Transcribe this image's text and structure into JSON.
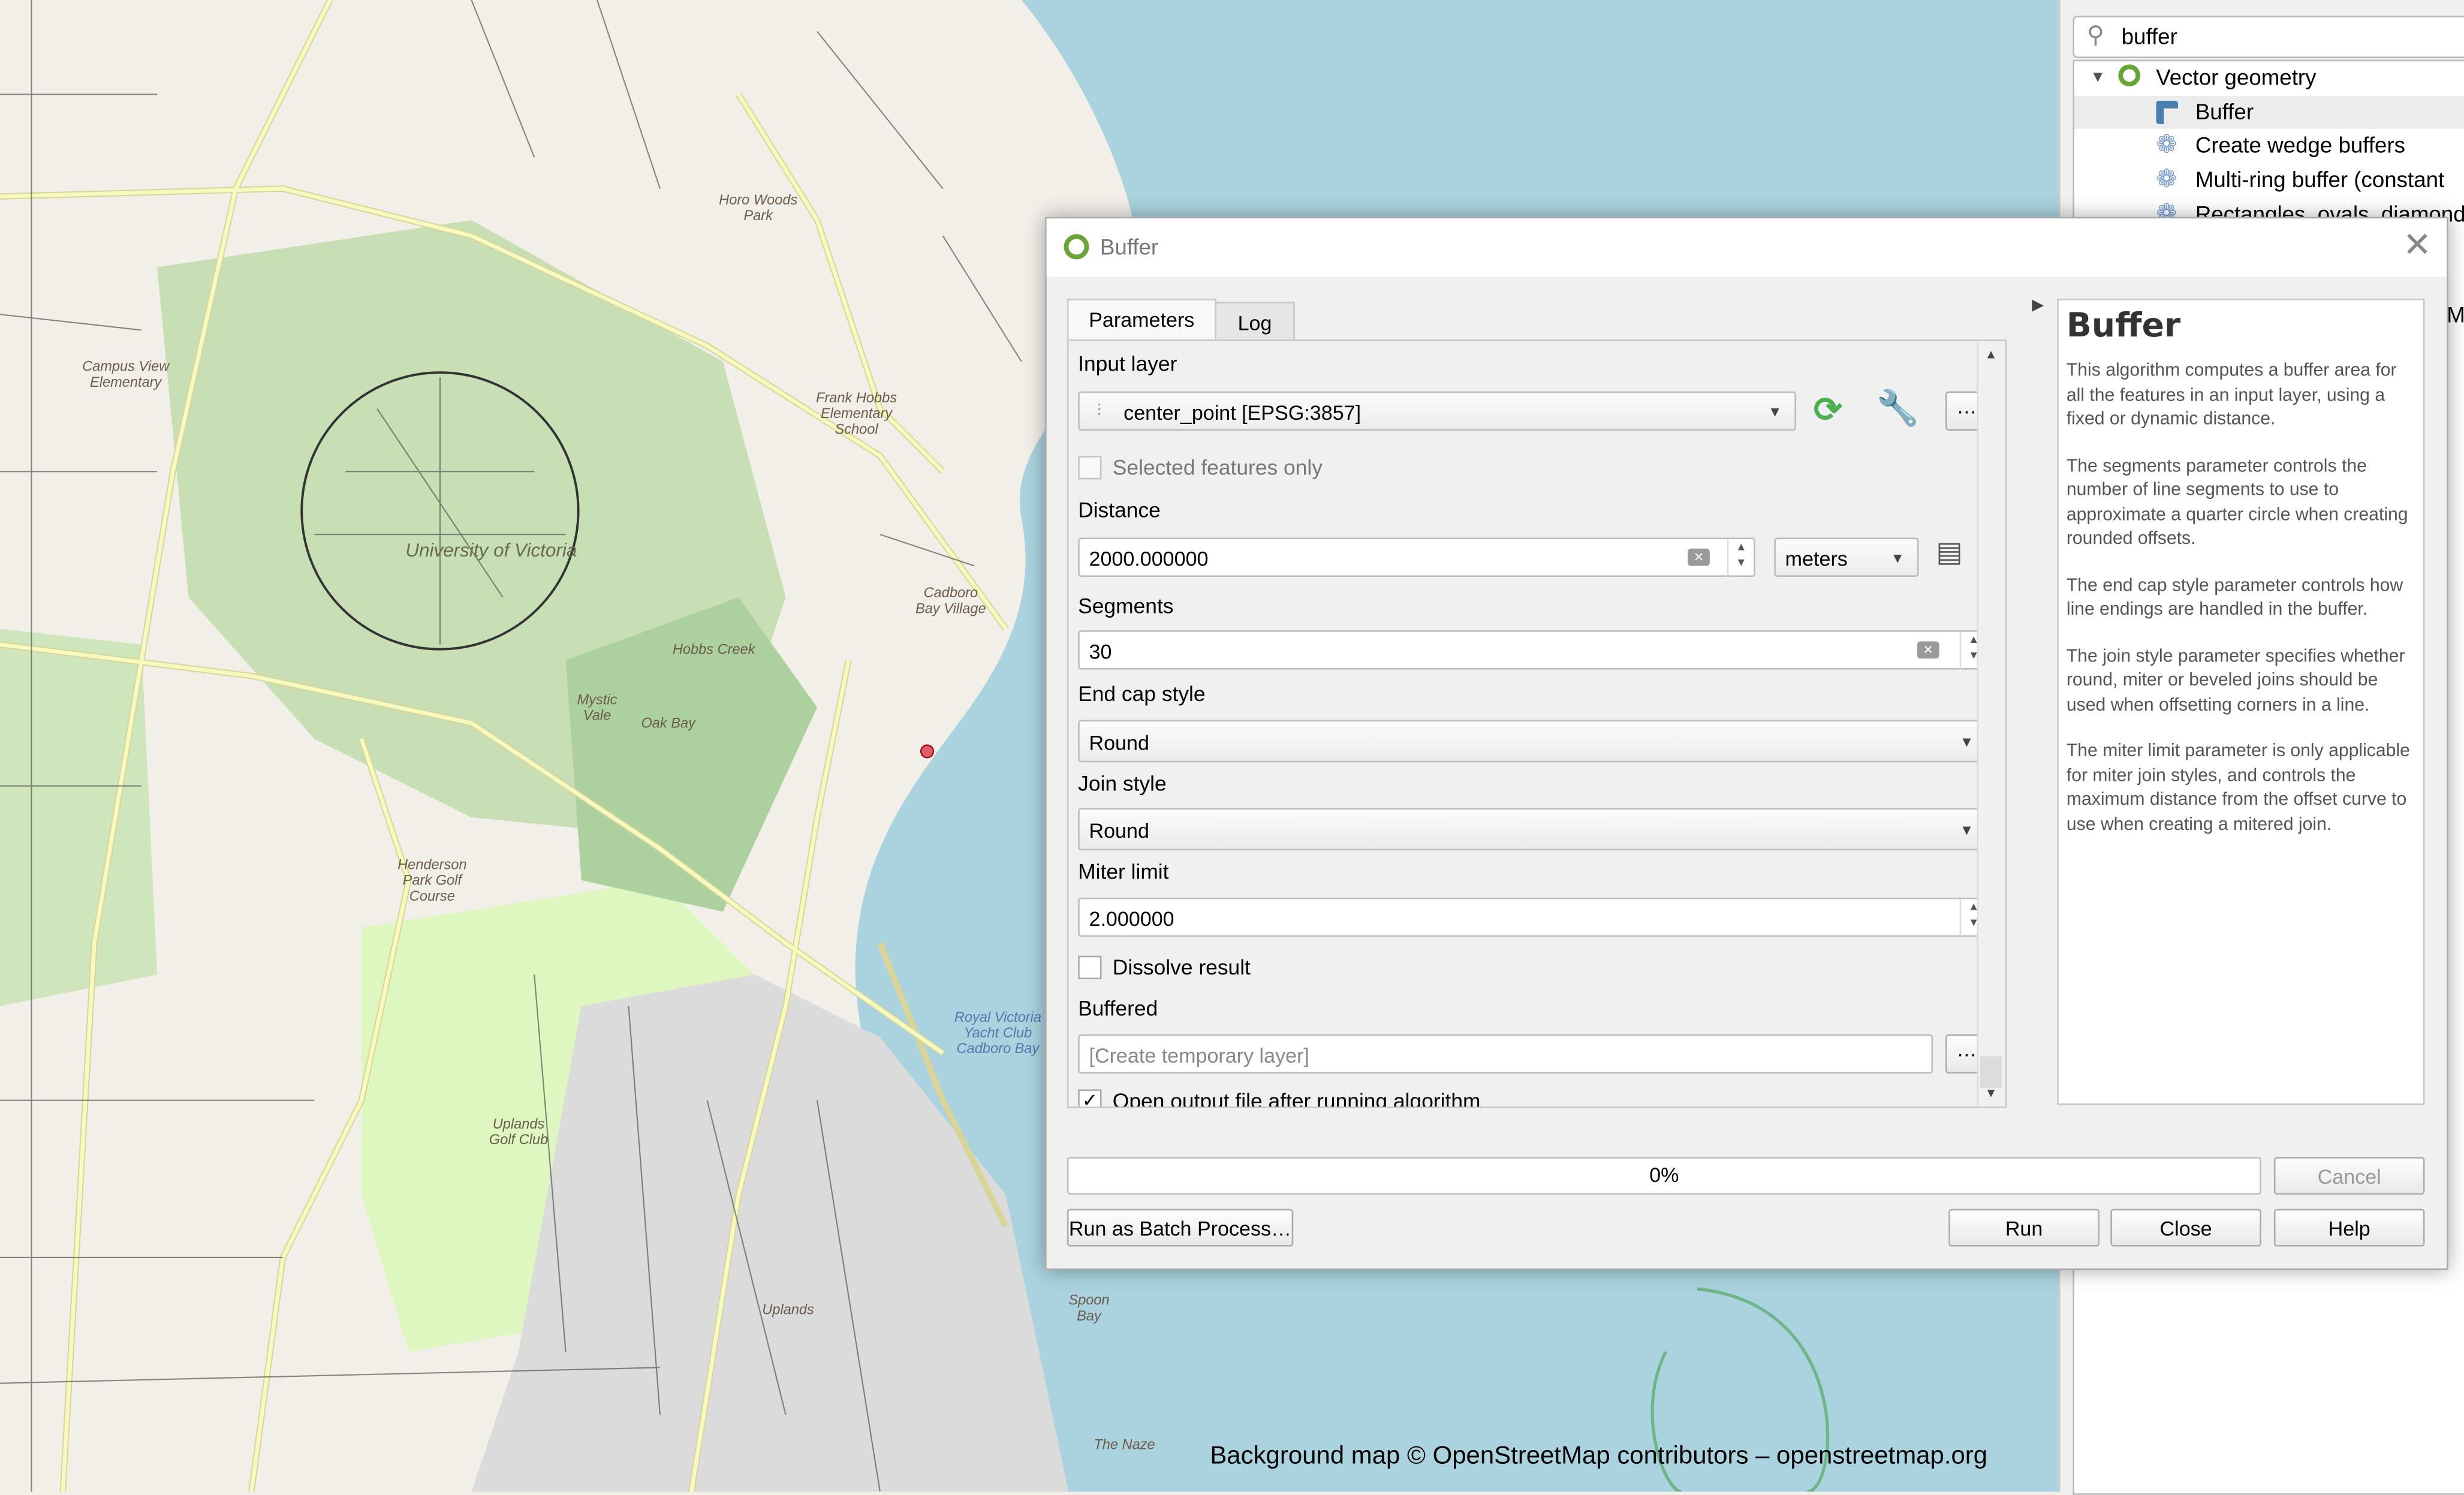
{
  "map": {
    "attribution": "Background map © OpenStreetMap contributors – openstreetmap.org",
    "labels": [
      "University of Victoria",
      "Campus View Elementary",
      "Henderson Park Golf Course",
      "Uplands Golf Club",
      "Frank Hobbs Elementary School",
      "Horo Woods Park",
      "Mystic Vale",
      "Cadboro Bay Village",
      "Oak Bay",
      "Hobbs Creek",
      "Uplands",
      "The Naze",
      "Spoon Bay",
      "Royal Victoria Yacht Club Cadboro Bay"
    ],
    "colors": {
      "land": "#f2efe9",
      "water": "#aad3df",
      "park": "#add19e",
      "golf": "#def6c0",
      "residential": "#e0dfdf",
      "road": "#f7fabf"
    }
  },
  "toolbox": {
    "search_value": "buffer",
    "group": "Vector geometry",
    "items": [
      "Buffer",
      "Create wedge buffers",
      "Multi-ring buffer (constant",
      "Rectangles, ovals, diamond"
    ],
    "side_letter": "M"
  },
  "dialog": {
    "title": "Buffer",
    "tabs": [
      "Parameters",
      "Log"
    ],
    "input_layer_label": "Input layer",
    "input_layer_value": "center_point [EPSG:3857]",
    "selected_only_label": "Selected features only",
    "distance_label": "Distance",
    "distance_value": "2000.000000",
    "distance_unit": "meters",
    "segments_label": "Segments",
    "segments_value": "30",
    "end_cap_label": "End cap style",
    "end_cap_value": "Round",
    "join_label": "Join style",
    "join_value": "Round",
    "miter_label": "Miter limit",
    "miter_value": "2.000000",
    "dissolve_label": "Dissolve result",
    "dissolve_checked": false,
    "output_label": "Buffered",
    "output_placeholder": "[Create temporary layer]",
    "open_output_label": "Open output file after running algorithm",
    "open_output_checked": true,
    "ellipsis": "…",
    "progress_text": "0%",
    "progress": 0,
    "buttons": {
      "batch": "Run as Batch Process…",
      "run": "Run",
      "close": "Close",
      "help": "Help",
      "cancel": "Cancel"
    },
    "help_title": "Buffer",
    "help_paragraphs": [
      "This algorithm computes a buffer area for all the features in an input layer, using a fixed or dynamic distance.",
      "The segments parameter controls the number of line segments to use to approximate a quarter circle when creating rounded offsets.",
      "The end cap style parameter controls how line endings are handled in the buffer.",
      "The join style parameter specifies whether round, miter or beveled joins should be used when offsetting corners in a line.",
      "The miter limit parameter is only applicable for miter join styles, and controls the maximum distance from the offset curve to use when creating a mitered join."
    ]
  }
}
